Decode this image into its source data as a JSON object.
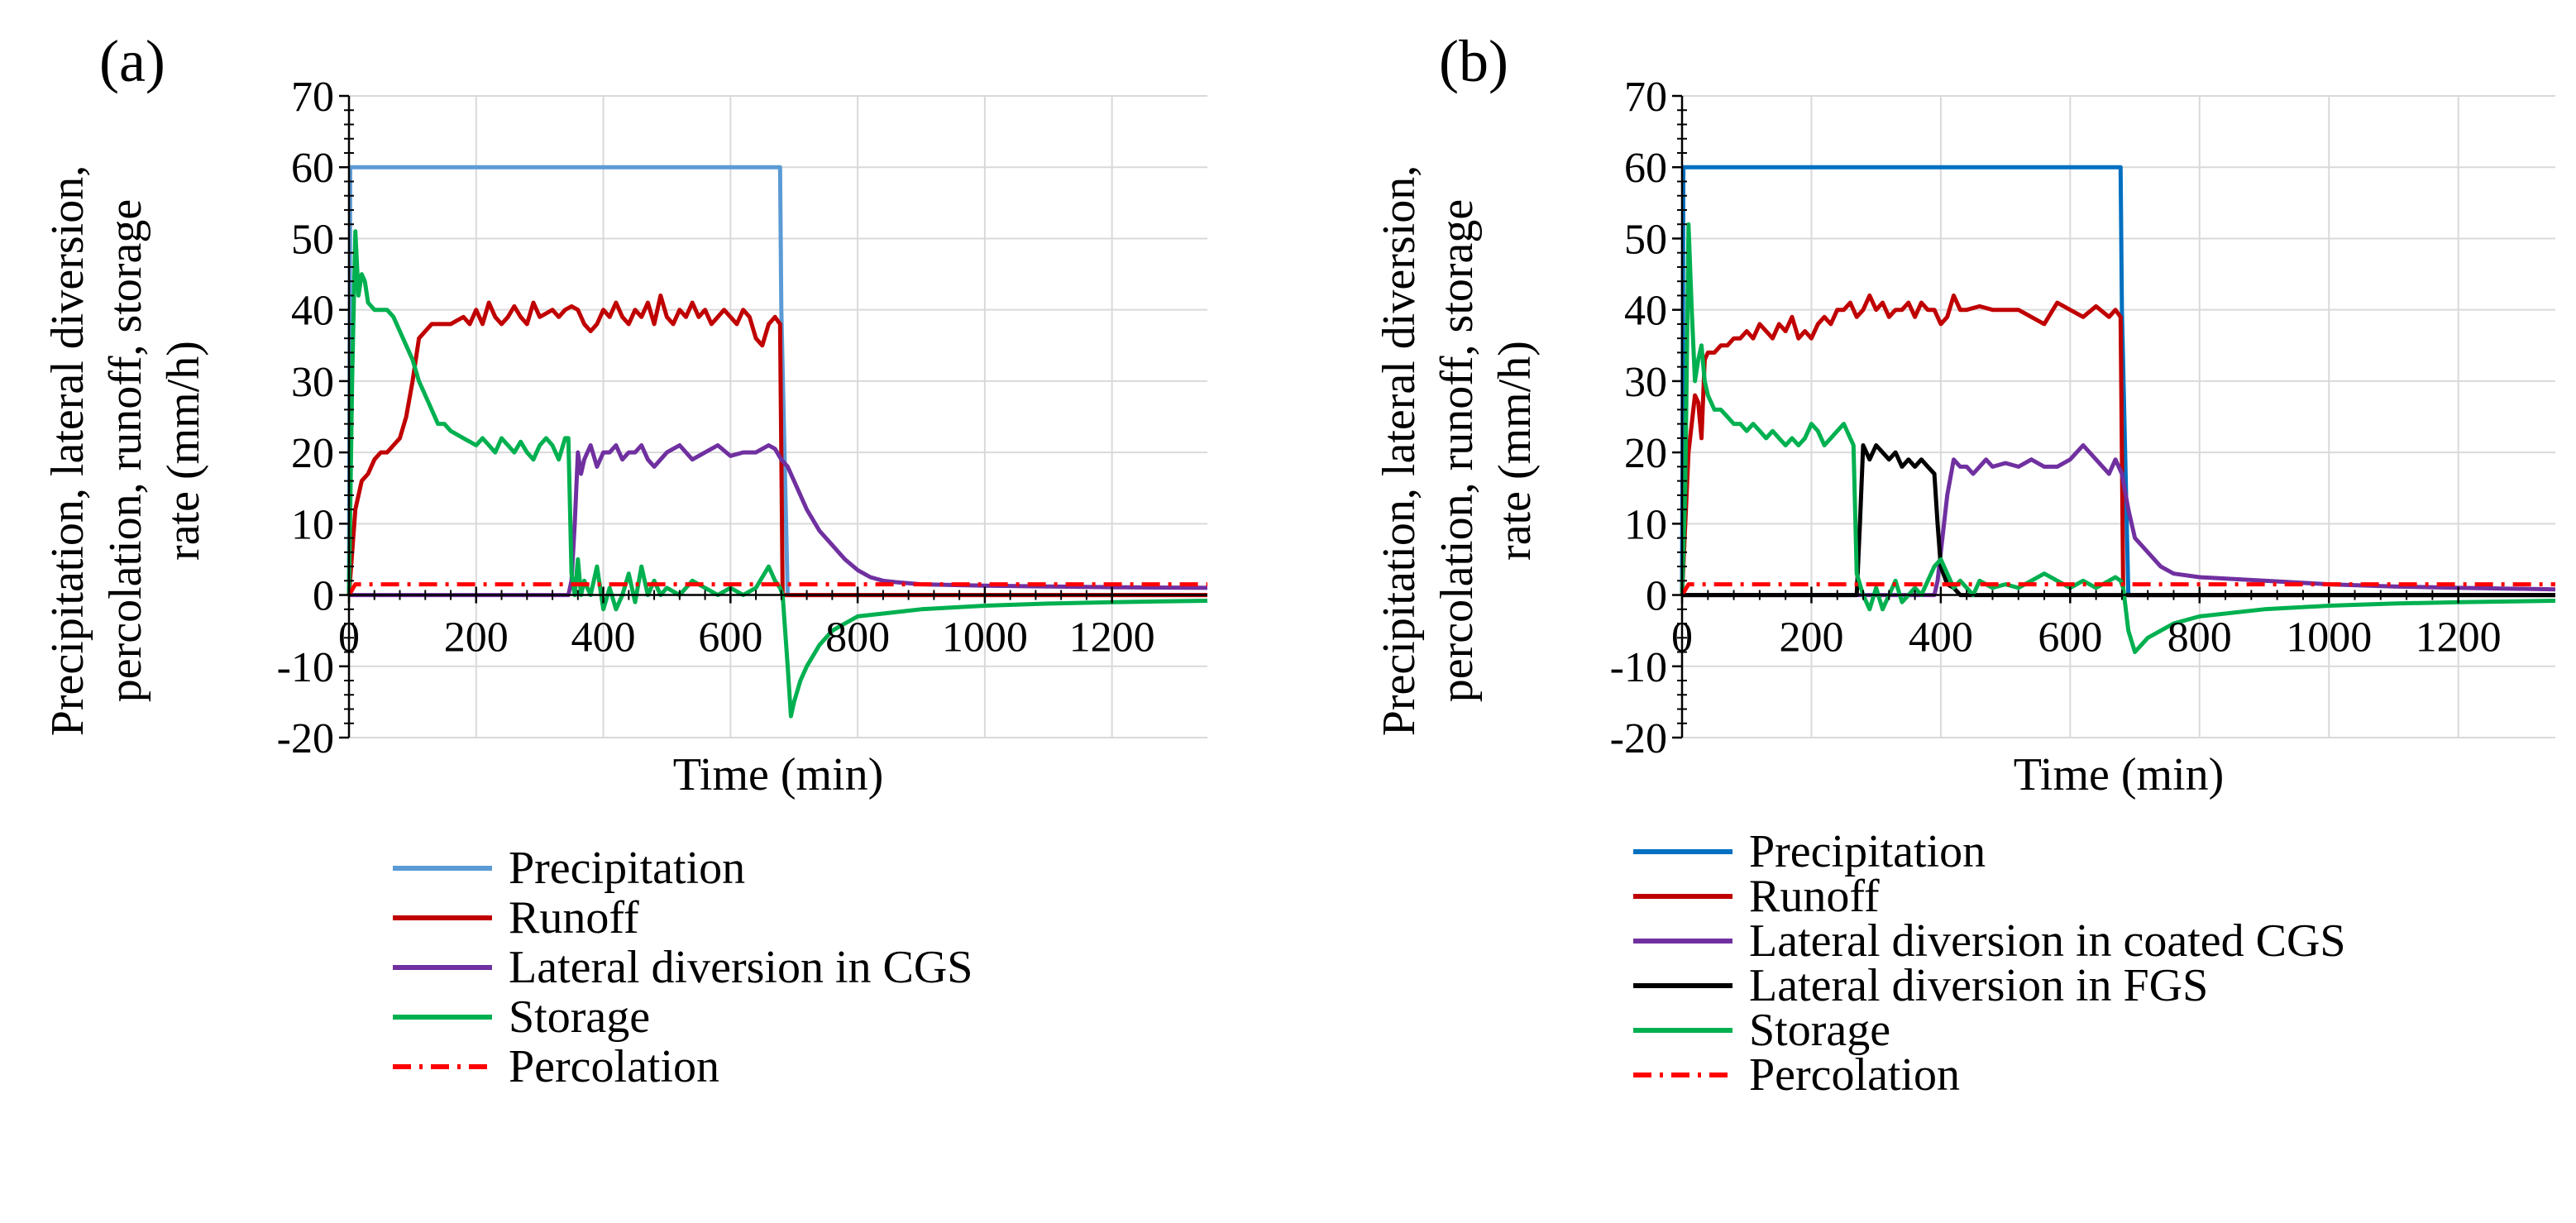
{
  "chart_data": [
    {
      "panel_label": "(a)",
      "type": "line",
      "xlabel": "Time (min)",
      "ylabel": "Precipitation, lateral diversion, percolation, runoff, storage rate (mm/h)",
      "ylabel_lines": [
        "Precipitation, lateral diversion,",
        "percolation, runoff, storage",
        "rate (mm/h)"
      ],
      "xlim": [
        0,
        1350
      ],
      "ylim": [
        -20,
        70
      ],
      "xticks": [
        "0",
        "200",
        "400",
        "600",
        "800",
        "1000",
        "1200"
      ],
      "xtick_values": [
        0,
        200,
        400,
        600,
        800,
        1000,
        1200
      ],
      "yticks": [
        "-20",
        "-10",
        "0",
        "10",
        "20",
        "30",
        "40",
        "50",
        "60",
        "70"
      ],
      "ytick_values": [
        -20,
        -10,
        0,
        10,
        20,
        30,
        40,
        50,
        60,
        70
      ],
      "grid": true,
      "legend_position": "bottom",
      "series": [
        {
          "name": "Precipitation",
          "color": "#5b9bd5",
          "dash": "solid",
          "x": [
            0,
            2,
            670,
            678,
            680,
            690,
            1350
          ],
          "y": [
            0,
            60,
            60,
            60,
            40,
            0,
            0
          ]
        },
        {
          "name": "Runoff",
          "color": "#c00000",
          "dash": "solid",
          "x": [
            0,
            10,
            20,
            30,
            40,
            50,
            60,
            70,
            80,
            90,
            100,
            110,
            120,
            130,
            140,
            150,
            160,
            170,
            180,
            190,
            200,
            210,
            220,
            230,
            240,
            250,
            260,
            270,
            280,
            290,
            300,
            310,
            320,
            330,
            340,
            350,
            360,
            370,
            380,
            390,
            400,
            410,
            420,
            430,
            440,
            450,
            460,
            470,
            480,
            490,
            500,
            510,
            520,
            530,
            540,
            550,
            560,
            570,
            580,
            590,
            600,
            610,
            620,
            630,
            640,
            650,
            660,
            670,
            678,
            682,
            1350
          ],
          "y": [
            0,
            12,
            16,
            17,
            19,
            20,
            20,
            21,
            22,
            25,
            30,
            36,
            37,
            38,
            38,
            38,
            38,
            38.5,
            39,
            38,
            40,
            38,
            41,
            39,
            38,
            39,
            40.5,
            39,
            38,
            41,
            39,
            39.5,
            40,
            39,
            40,
            40.5,
            40,
            38,
            37,
            38,
            40,
            39,
            41,
            39,
            38,
            40,
            39,
            41,
            38,
            42,
            39,
            38,
            40,
            39,
            41,
            39,
            40,
            38,
            39,
            40,
            39,
            38,
            40,
            39,
            36,
            35,
            38,
            39,
            38,
            0,
            0
          ]
        },
        {
          "name": "Lateral diversion in CGS",
          "color": "#7030a0",
          "dash": "solid",
          "x": [
            0,
            340,
            345,
            350,
            355,
            360,
            365,
            370,
            380,
            390,
            400,
            410,
            420,
            430,
            440,
            450,
            460,
            470,
            480,
            490,
            500,
            520,
            540,
            560,
            580,
            600,
            620,
            640,
            660,
            670,
            680,
            690,
            700,
            710,
            720,
            740,
            760,
            780,
            800,
            820,
            840,
            860,
            900,
            1000,
            1100,
            1200,
            1350
          ],
          "y": [
            0,
            0,
            0,
            2,
            10,
            20,
            17,
            19,
            21,
            18,
            20,
            20,
            21,
            19,
            20,
            20,
            21,
            19,
            18,
            19,
            20,
            21,
            19,
            20,
            21,
            19.5,
            20,
            20,
            21,
            20.5,
            19,
            18,
            16,
            14,
            12,
            9,
            7,
            5,
            3.5,
            2.5,
            2,
            1.8,
            1.5,
            1.3,
            1.2,
            1.1,
            1
          ]
        },
        {
          "name": "Storage",
          "color": "#00b050",
          "dash": "solid",
          "x": [
            0,
            5,
            10,
            15,
            20,
            25,
            30,
            40,
            50,
            60,
            70,
            80,
            90,
            100,
            110,
            120,
            130,
            140,
            150,
            160,
            170,
            180,
            190,
            200,
            210,
            220,
            230,
            240,
            250,
            260,
            270,
            280,
            290,
            300,
            310,
            320,
            330,
            340,
            345,
            350,
            355,
            360,
            365,
            370,
            380,
            390,
            400,
            410,
            420,
            430,
            440,
            450,
            460,
            470,
            480,
            490,
            500,
            520,
            540,
            560,
            580,
            600,
            620,
            640,
            660,
            670,
            678,
            682,
            690,
            695,
            700,
            710,
            720,
            740,
            760,
            780,
            800,
            850,
            900,
            1000,
            1100,
            1200,
            1350
          ],
          "y": [
            0,
            30,
            51,
            42,
            45,
            44,
            41,
            40,
            40,
            40,
            39,
            37,
            35,
            33,
            30,
            28,
            26,
            24,
            24,
            23,
            22.5,
            22,
            21.5,
            21,
            22,
            21,
            20,
            22,
            21,
            20,
            21.5,
            20,
            19,
            21,
            22,
            21,
            19,
            22,
            22,
            3,
            0,
            5,
            0,
            2,
            0,
            4,
            -2,
            1,
            -2,
            0,
            3,
            -1,
            4,
            0,
            2,
            0,
            1,
            0,
            2,
            1,
            0,
            1,
            0,
            1,
            4,
            2,
            1,
            0,
            -10,
            -17,
            -15,
            -12,
            -10,
            -7,
            -5,
            -4,
            -3,
            -2.5,
            -2,
            -1.5,
            -1.2,
            -1,
            -0.8
          ]
        },
        {
          "name": "Percolation",
          "color": "#ff0000",
          "dash": "dashdot",
          "x": [
            0,
            10,
            1350
          ],
          "y": [
            0,
            1.5,
            1.5
          ]
        }
      ]
    },
    {
      "panel_label": "(b)",
      "type": "line",
      "xlabel": "Time (min)",
      "ylabel": "Precipitation, lateral diversion, percolation, runoff, storage rate (mm/h)",
      "ylabel_lines": [
        "Precipitation, lateral diversion,",
        "percolation, runoff, storage",
        "rate (mm/h)"
      ],
      "xlim": [
        0,
        1350
      ],
      "ylim": [
        -20,
        70
      ],
      "xticks": [
        "0",
        "200",
        "400",
        "600",
        "800",
        "1000",
        "1200"
      ],
      "xtick_values": [
        0,
        200,
        400,
        600,
        800,
        1000,
        1200
      ],
      "yticks": [
        "-20",
        "-10",
        "0",
        "10",
        "20",
        "30",
        "40",
        "50",
        "60",
        "70"
      ],
      "ytick_values": [
        -20,
        -10,
        0,
        10,
        20,
        30,
        40,
        50,
        60,
        70
      ],
      "grid": true,
      "legend_position": "bottom",
      "series": [
        {
          "name": "Precipitation",
          "color": "#0070c0",
          "dash": "solid",
          "x": [
            0,
            2,
            670,
            678,
            680,
            690,
            1350
          ],
          "y": [
            0,
            60,
            60,
            60,
            40,
            0,
            0
          ]
        },
        {
          "name": "Runoff",
          "color": "#c00000",
          "dash": "solid",
          "x": [
            0,
            10,
            20,
            25,
            30,
            35,
            40,
            50,
            60,
            70,
            80,
            90,
            100,
            110,
            120,
            130,
            140,
            150,
            160,
            170,
            180,
            190,
            200,
            210,
            220,
            230,
            240,
            250,
            260,
            270,
            280,
            290,
            300,
            310,
            320,
            330,
            340,
            350,
            360,
            370,
            380,
            390,
            400,
            410,
            420,
            430,
            440,
            460,
            480,
            500,
            520,
            540,
            560,
            580,
            600,
            620,
            640,
            660,
            670,
            678,
            682,
            1350
          ],
          "y": [
            0,
            20,
            28,
            27,
            22,
            33,
            34,
            34,
            35,
            35,
            36,
            36,
            37,
            36,
            38,
            37,
            36,
            38,
            37,
            39,
            36,
            37,
            36,
            38,
            39,
            38,
            40,
            40,
            41,
            39,
            40,
            42,
            40,
            41,
            39,
            40,
            40,
            41,
            39,
            41,
            40,
            40,
            38,
            39,
            42,
            40,
            40,
            40.5,
            40,
            40,
            40,
            39,
            38,
            41,
            40,
            39,
            40.5,
            39,
            40,
            39,
            0,
            0
          ]
        },
        {
          "name": "Lateral diversion in coated CGS",
          "color": "#7030a0",
          "dash": "solid",
          "x": [
            0,
            390,
            395,
            400,
            410,
            420,
            430,
            440,
            450,
            460,
            470,
            480,
            500,
            520,
            540,
            560,
            580,
            600,
            620,
            640,
            660,
            670,
            680,
            690,
            700,
            720,
            740,
            760,
            800,
            900,
            1000,
            1100,
            1200,
            1350
          ],
          "y": [
            0,
            0,
            2,
            6,
            14,
            19,
            18,
            18,
            17,
            18,
            19,
            18,
            18.5,
            18,
            19,
            18,
            18,
            19,
            21,
            19,
            17,
            19,
            17,
            12,
            8,
            6,
            4,
            3,
            2.5,
            2,
            1.5,
            1.2,
            1,
            0.8
          ]
        },
        {
          "name": "Lateral diversion in FGS",
          "color": "#000000",
          "dash": "solid",
          "x": [
            0,
            270,
            275,
            280,
            290,
            300,
            310,
            320,
            330,
            340,
            350,
            360,
            370,
            380,
            390,
            395,
            400,
            410,
            420,
            430,
            1350
          ],
          "y": [
            0,
            0,
            10,
            21,
            19,
            21,
            20,
            19,
            20,
            18,
            19,
            18,
            19,
            18,
            17,
            10,
            4,
            1.5,
            1,
            0,
            0
          ]
        },
        {
          "name": "Storage",
          "color": "#00b050",
          "dash": "solid",
          "x": [
            0,
            5,
            10,
            15,
            20,
            25,
            30,
            35,
            40,
            50,
            60,
            70,
            80,
            90,
            100,
            110,
            120,
            130,
            140,
            150,
            160,
            170,
            180,
            190,
            200,
            210,
            220,
            230,
            240,
            250,
            260,
            265,
            270,
            280,
            290,
            300,
            310,
            320,
            330,
            340,
            350,
            360,
            370,
            380,
            390,
            400,
            410,
            420,
            430,
            440,
            450,
            460,
            480,
            500,
            520,
            540,
            560,
            580,
            600,
            620,
            640,
            660,
            670,
            678,
            682,
            690,
            700,
            710,
            720,
            740,
            760,
            800,
            900,
            1000,
            1100,
            1200,
            1350
          ],
          "y": [
            0,
            15,
            52,
            40,
            30,
            33,
            35,
            30,
            28,
            26,
            26,
            25,
            24,
            24,
            23,
            24,
            23,
            22,
            23,
            22,
            21,
            22,
            21,
            22,
            24,
            23,
            21,
            22,
            23,
            24,
            22,
            21,
            3,
            0,
            -2,
            1,
            -2,
            0,
            2,
            -1,
            0,
            1,
            0,
            2,
            4,
            5,
            3,
            1,
            2,
            1,
            0,
            2,
            1,
            1.5,
            1,
            2,
            3,
            2,
            1,
            2,
            1,
            2,
            2.5,
            2,
            1,
            -5,
            -8,
            -7,
            -6,
            -5,
            -4,
            -3,
            -2,
            -1.5,
            -1.2,
            -1,
            -0.8
          ]
        },
        {
          "name": "Percolation",
          "color": "#ff0000",
          "dash": "dashdot",
          "x": [
            0,
            10,
            1350
          ],
          "y": [
            0,
            1.5,
            1.5
          ]
        }
      ]
    }
  ]
}
